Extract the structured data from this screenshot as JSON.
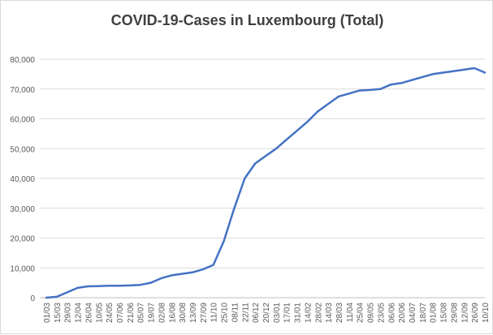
{
  "chart_data": {
    "type": "line",
    "title": "COVID-19-Cases in Luxembourg (Total)",
    "xlabel": "",
    "ylabel": "",
    "ylim": [
      0,
      80000
    ],
    "y_ticks": [
      "0",
      "10,000",
      "20,000",
      "30,000",
      "40,000",
      "50,000",
      "60,000",
      "70,000",
      "80,000"
    ],
    "y_tick_values": [
      0,
      10000,
      20000,
      30000,
      40000,
      50000,
      60000,
      70000,
      80000
    ],
    "grid": true,
    "legend": "none",
    "line_color": "#4472c4",
    "categories": [
      "01/03",
      "15/03",
      "29/03",
      "12/04",
      "26/04",
      "10/05",
      "24/05",
      "07/06",
      "21/06",
      "05/07",
      "19/07",
      "02/08",
      "16/08",
      "30/08",
      "13/09",
      "27/09",
      "11/10",
      "25/10",
      "08/11",
      "22/11",
      "06/12",
      "20/12",
      "03/01",
      "17/01",
      "31/01",
      "14/02",
      "28/02",
      "14/03",
      "28/03",
      "11/04",
      "25/04",
      "09/05",
      "23/05",
      "06/06",
      "20/06",
      "04/07",
      "18/07",
      "01/08",
      "15/08",
      "29/08",
      "12/09",
      "26/09",
      "10/10"
    ],
    "series": [
      {
        "values": [
          0,
          300,
          1800,
          3300,
          3800,
          3900,
          4000,
          4000,
          4100,
          4300,
          5000,
          6500,
          7500,
          8000,
          8500,
          9500,
          11000,
          19000,
          30000,
          40000,
          45000,
          47500,
          50000,
          53000,
          56000,
          59000,
          62500,
          65000,
          67500,
          68500,
          69500,
          69700,
          70000,
          71500,
          72000,
          73000,
          74000,
          75000,
          75500,
          76000,
          76500,
          77000,
          75500
        ]
      }
    ]
  }
}
